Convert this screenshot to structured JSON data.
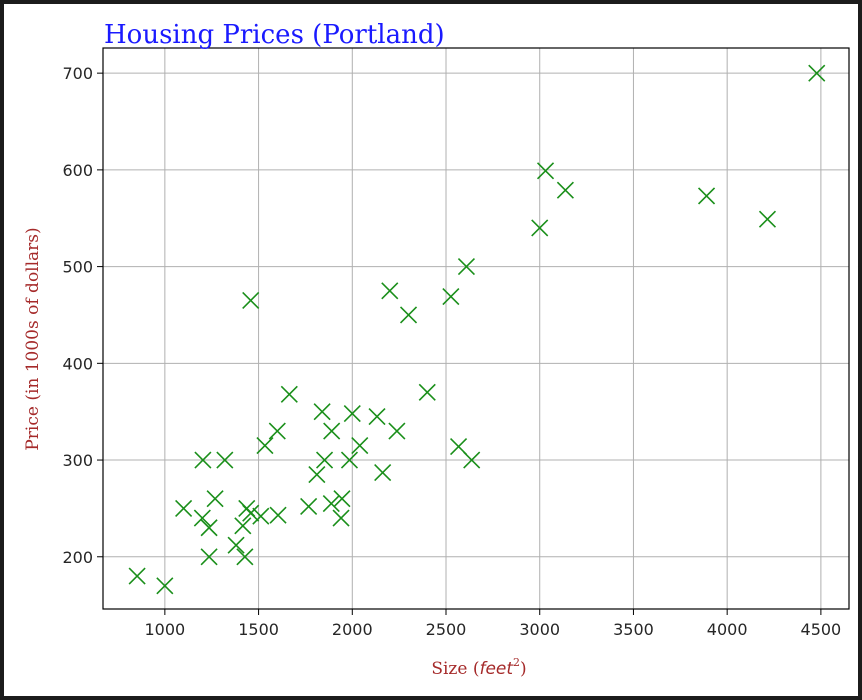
{
  "chart_data": {
    "type": "scatter",
    "title": "Housing Prices (Portland)",
    "xlabel": "Size (feet²)",
    "xlabel_parts": {
      "prefix": "Size (",
      "unit": "feet",
      "power": "2",
      "suffix": ")"
    },
    "ylabel": "Price (in 1000s of dollars)",
    "xlim": [
      670,
      4650
    ],
    "ylim": [
      146,
      726
    ],
    "xticks": [
      1000,
      1500,
      2000,
      2500,
      3000,
      3500,
      4000,
      4500
    ],
    "yticks": [
      200,
      300,
      400,
      500,
      600,
      700
    ],
    "grid": true,
    "marker": "x",
    "colors": {
      "marker": "#1a8f1a",
      "title": "#1a1aff",
      "axis_label": "#a52a2a",
      "grid": "#b0b0b0"
    },
    "points": [
      {
        "x": 852,
        "y": 180
      },
      {
        "x": 1000,
        "y": 170
      },
      {
        "x": 1100,
        "y": 250
      },
      {
        "x": 1203,
        "y": 300
      },
      {
        "x": 1200,
        "y": 240
      },
      {
        "x": 1236,
        "y": 230
      },
      {
        "x": 1236,
        "y": 200
      },
      {
        "x": 1268,
        "y": 260
      },
      {
        "x": 1320,
        "y": 300
      },
      {
        "x": 1380,
        "y": 212
      },
      {
        "x": 1416,
        "y": 232
      },
      {
        "x": 1427,
        "y": 200
      },
      {
        "x": 1437,
        "y": 250
      },
      {
        "x": 1458,
        "y": 465
      },
      {
        "x": 1458,
        "y": 245
      },
      {
        "x": 1512,
        "y": 242
      },
      {
        "x": 1534,
        "y": 315
      },
      {
        "x": 1600,
        "y": 330
      },
      {
        "x": 1604,
        "y": 243
      },
      {
        "x": 1664,
        "y": 368
      },
      {
        "x": 1767,
        "y": 252
      },
      {
        "x": 1811,
        "y": 285
      },
      {
        "x": 1839,
        "y": 350
      },
      {
        "x": 1852,
        "y": 300
      },
      {
        "x": 1888,
        "y": 255
      },
      {
        "x": 1890,
        "y": 330
      },
      {
        "x": 1940,
        "y": 240
      },
      {
        "x": 1945,
        "y": 260
      },
      {
        "x": 1985,
        "y": 300
      },
      {
        "x": 2000,
        "y": 348
      },
      {
        "x": 2040,
        "y": 315
      },
      {
        "x": 2132,
        "y": 345
      },
      {
        "x": 2162,
        "y": 287
      },
      {
        "x": 2200,
        "y": 475
      },
      {
        "x": 2238,
        "y": 330
      },
      {
        "x": 2300,
        "y": 450
      },
      {
        "x": 2400,
        "y": 370
      },
      {
        "x": 2526,
        "y": 469
      },
      {
        "x": 2567,
        "y": 314
      },
      {
        "x": 2609,
        "y": 500
      },
      {
        "x": 2637,
        "y": 300
      },
      {
        "x": 3000,
        "y": 540
      },
      {
        "x": 3031,
        "y": 599
      },
      {
        "x": 3137,
        "y": 579
      },
      {
        "x": 3890,
        "y": 573
      },
      {
        "x": 4215,
        "y": 549
      },
      {
        "x": 4478,
        "y": 700
      }
    ]
  }
}
